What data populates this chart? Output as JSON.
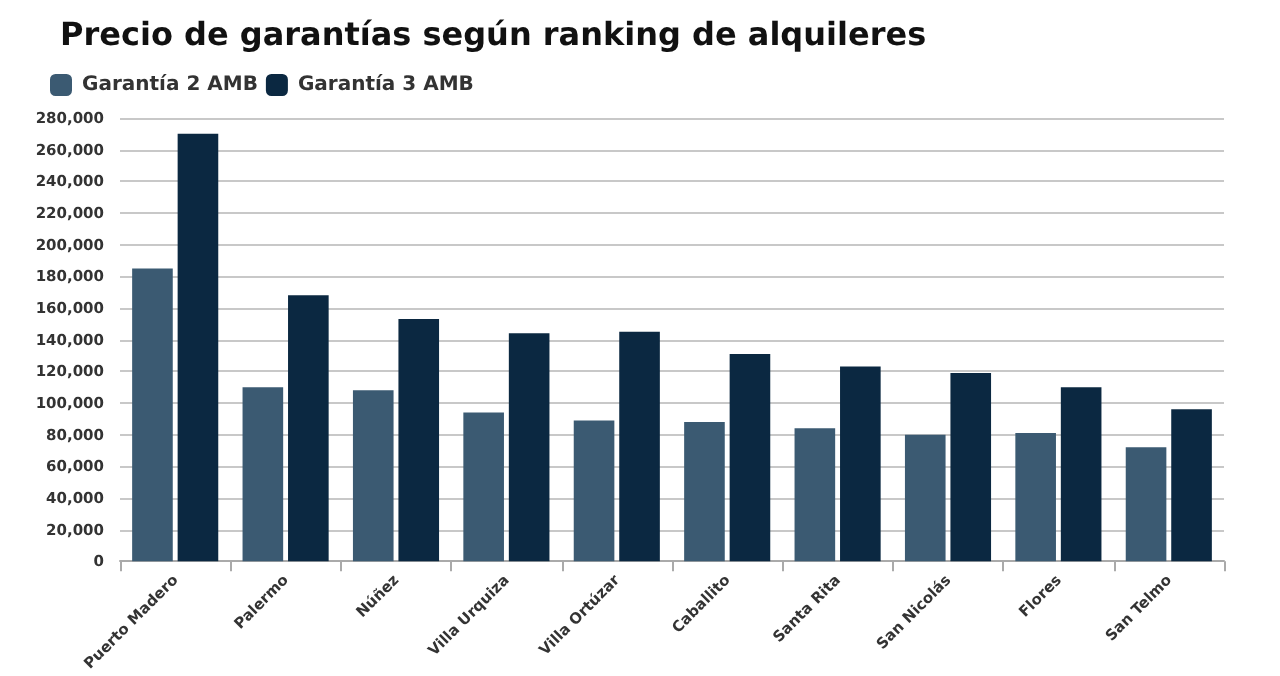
{
  "chart_data": {
    "type": "bar",
    "title": "Precio de garantías según ranking de alquileres",
    "categories": [
      "Puerto Madero",
      "Palermo",
      "Núñez",
      "Villa Urquiza",
      "Villa Ortúzar",
      "Caballito",
      "Santa Rita",
      "San Nicolás",
      "Flores",
      "San Telmo"
    ],
    "series": [
      {
        "name": "Garantía 2 AMB",
        "color": "#3b5a72",
        "values": [
          185000,
          110000,
          108000,
          94000,
          89000,
          88000,
          84000,
          80000,
          81000,
          72000
        ]
      },
      {
        "name": "Garantía 3 AMB",
        "color": "#0b2841",
        "values": [
          270000,
          168000,
          153000,
          144000,
          145000,
          131000,
          123000,
          119000,
          110000,
          96000
        ]
      }
    ],
    "ylim": [
      0,
      280000
    ],
    "yticks": [
      0,
      {
        "value": 20000,
        "label": "20,000"
      },
      {
        "value": 40000,
        "label": "40,000"
      },
      {
        "value": 60000,
        "label": "60,000"
      },
      {
        "value": 80000,
        "label": "80,000"
      },
      {
        "value": 100000,
        "label": "100,000"
      },
      {
        "value": 120000,
        "label": "120,000"
      },
      {
        "value": 140000,
        "label": "140,000"
      },
      {
        "value": 160000,
        "label": "160,000"
      },
      {
        "value": 180000,
        "label": "180,000"
      },
      {
        "value": 200000,
        "label": "200,000"
      },
      {
        "value": 220000,
        "label": "220,000"
      },
      {
        "value": 240000,
        "label": "240,000"
      },
      {
        "value": 260000,
        "label": "260,000"
      },
      {
        "value": 280000,
        "label": "280,000"
      }
    ],
    "grid": "y",
    "legend": "top left"
  }
}
